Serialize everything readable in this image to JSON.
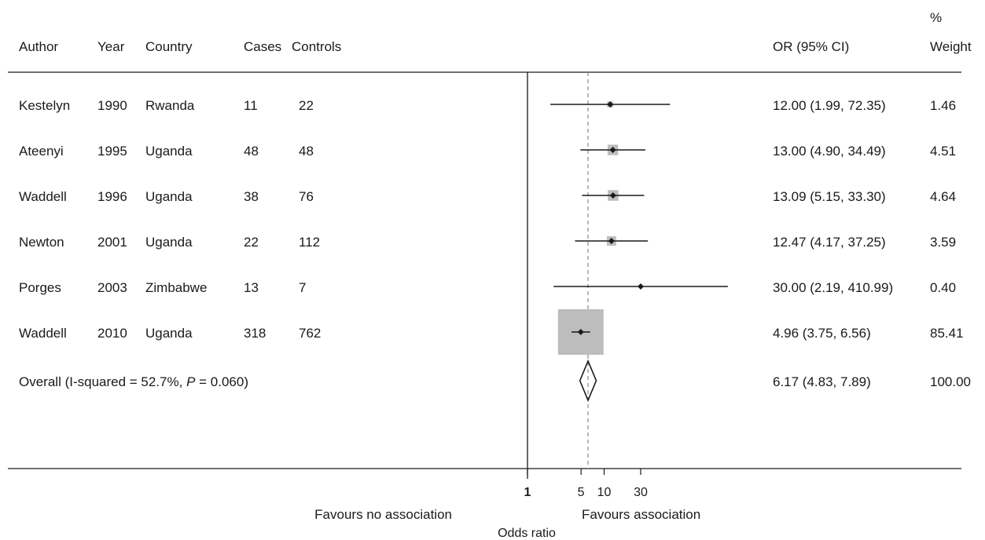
{
  "chart_data": {
    "type": "forest",
    "columns": {
      "author": "Author",
      "year": "Year",
      "country": "Country",
      "cases": "Cases",
      "controls": "Controls",
      "or_ci": "OR (95% CI)",
      "weight_line1": "%",
      "weight_line2": "Weight"
    },
    "studies": [
      {
        "author": "Kestelyn",
        "year": "1990",
        "country": "Rwanda",
        "cases": "11",
        "controls": "22",
        "or": 12.0,
        "lower": 1.99,
        "upper": 72.35,
        "or_text": "12.00 (1.99, 72.35)",
        "weight": 1.46,
        "weight_text": "1.46"
      },
      {
        "author": "Ateenyi",
        "year": "1995",
        "country": "Uganda",
        "cases": "48",
        "controls": "48",
        "or": 13.0,
        "lower": 4.9,
        "upper": 34.49,
        "or_text": "13.00 (4.90, 34.49)",
        "weight": 4.51,
        "weight_text": "4.51"
      },
      {
        "author": "Waddell",
        "year": "1996",
        "country": "Uganda",
        "cases": "38",
        "controls": "76",
        "or": 13.09,
        "lower": 5.15,
        "upper": 33.3,
        "or_text": "13.09 (5.15, 33.30)",
        "weight": 4.64,
        "weight_text": "4.64"
      },
      {
        "author": "Newton",
        "year": "2001",
        "country": "Uganda",
        "cases": "22",
        "controls": "112",
        "or": 12.47,
        "lower": 4.17,
        "upper": 37.25,
        "or_text": "12.47 (4.17, 37.25)",
        "weight": 3.59,
        "weight_text": "3.59"
      },
      {
        "author": "Porges",
        "year": "2003",
        "country": "Zimbabwe",
        "cases": "13",
        "controls": "7",
        "or": 30.0,
        "lower": 2.19,
        "upper": 410.99,
        "or_text": "30.00 (2.19, 410.99)",
        "weight": 0.4,
        "weight_text": "0.40"
      },
      {
        "author": "Waddell",
        "year": "2010",
        "country": "Uganda",
        "cases": "318",
        "controls": "762",
        "or": 4.96,
        "lower": 3.75,
        "upper": 6.56,
        "or_text": "4.96 (3.75, 6.56)",
        "weight": 85.41,
        "weight_text": "85.41"
      }
    ],
    "overall": {
      "label_prefix": "Overall  (I-squared = 52.7%, ",
      "label_p": "P",
      "label_suffix": " = 0.060)",
      "or": 6.17,
      "lower": 4.83,
      "upper": 7.89,
      "or_text": "6.17 (4.83, 7.89)",
      "weight_text": "100.00"
    },
    "x_axis": {
      "scale": "log",
      "ticks": [
        1,
        5,
        10,
        30
      ],
      "tick_labels": [
        "1",
        "5",
        "10",
        "30"
      ],
      "label": "Odds ratio",
      "left_note": "Favours no association",
      "right_note": "Favours association",
      "null_line": 1,
      "reference_line": 6.17
    },
    "colors": {
      "weight_box": "#bdbdbd",
      "line": "#1a1a1a",
      "reference_dash": "#8a8a8a"
    }
  }
}
